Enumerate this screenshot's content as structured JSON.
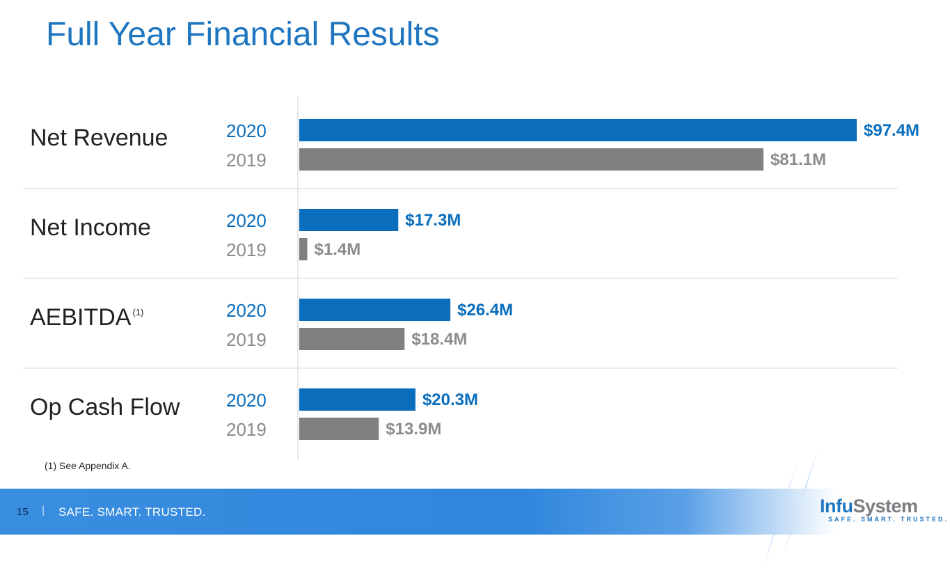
{
  "title": "Full Year Financial Results",
  "footnote": "(1) See Appendix A.",
  "footer": {
    "page_number": "15",
    "separator": "|",
    "tagline": "SAFE. SMART. TRUSTED."
  },
  "logo": {
    "name_part1": "Infu",
    "name_part2": "System",
    "tagline": "SAFE. SMART. TRUSTED."
  },
  "colors": {
    "y2020": "#0a6ebd",
    "y2019": "#808080",
    "title": "#1f76c0"
  },
  "chart_data": {
    "type": "bar",
    "orientation": "horizontal",
    "unit": "$M",
    "categories": [
      "Net Revenue",
      "Net Income",
      "AEBITDA",
      "Op Cash Flow"
    ],
    "category_superscripts": [
      "",
      "",
      "(1)",
      ""
    ],
    "series": [
      {
        "name": "2020",
        "values": [
          97.4,
          17.3,
          26.4,
          20.3
        ],
        "labels": [
          "$97.4M",
          "$17.3M",
          "$26.4M",
          "$20.3M"
        ]
      },
      {
        "name": "2019",
        "values": [
          81.1,
          1.4,
          18.4,
          13.9
        ],
        "labels": [
          "$81.1M",
          "$1.4M",
          "$18.4M",
          "$13.9M"
        ]
      }
    ],
    "xlim": [
      0,
      97.4
    ]
  }
}
